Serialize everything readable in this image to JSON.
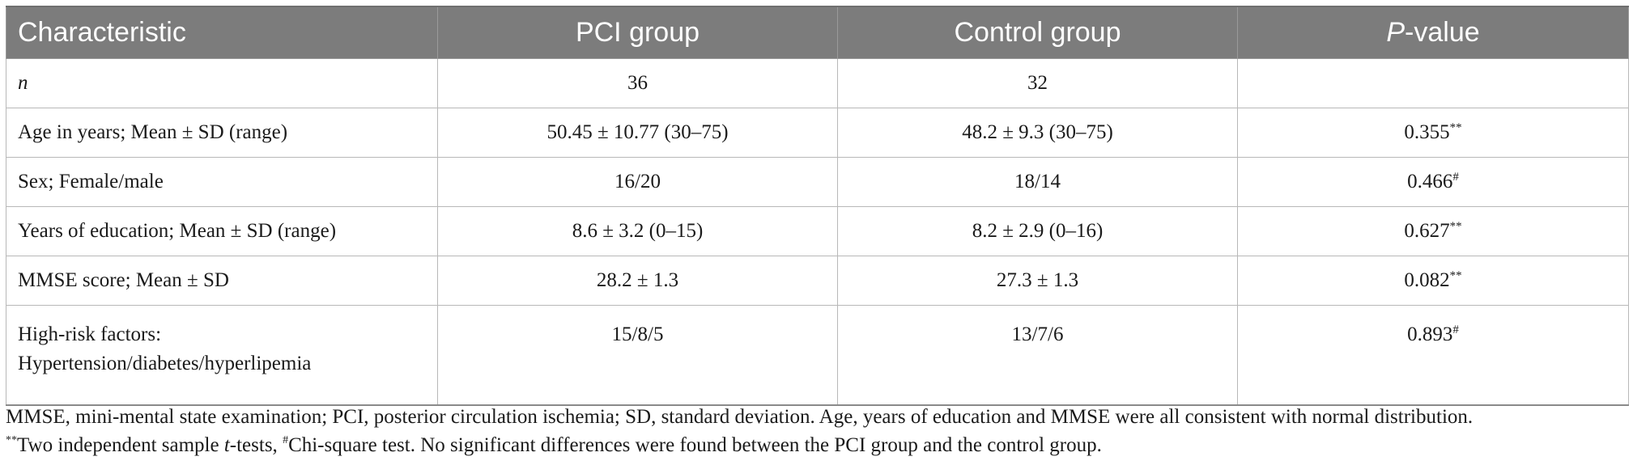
{
  "table": {
    "headers": {
      "characteristic": "Characteristic",
      "pci_group": "PCI group",
      "control_group": "Control group",
      "p_italic": "P",
      "p_rest": "-value"
    },
    "rows": [
      {
        "label": "n",
        "pci": "36",
        "control": "32",
        "p": "",
        "p_mark": ""
      },
      {
        "label": "Age in years; Mean ± SD (range)",
        "pci": "50.45 ± 10.77 (30–75)",
        "control": "48.2 ± 9.3 (30–75)",
        "p": "0.355",
        "p_mark": "**"
      },
      {
        "label": "Sex; Female/male",
        "pci": "16/20",
        "control": "18/14",
        "p": "0.466",
        "p_mark": "#"
      },
      {
        "label": "Years of education; Mean ± SD (range)",
        "pci": "8.6 ± 3.2 (0–15)",
        "control": "8.2 ± 2.9 (0–16)",
        "p": "0.627",
        "p_mark": "**"
      },
      {
        "label": "MMSE score; Mean ± SD",
        "pci": "28.2 ± 1.3",
        "control": "27.3 ± 1.3",
        "p": "0.082",
        "p_mark": "**"
      },
      {
        "label_line1": "High-risk factors:",
        "label_line2": "Hypertension/diabetes/hyperlipemia",
        "pci": "15/8/5",
        "control": "13/7/6",
        "p": "0.893",
        "p_mark": "#"
      }
    ]
  },
  "footnotes": {
    "line1": "MMSE, mini-mental state examination; PCI, posterior circulation ischemia; SD, standard deviation. Age, years of education and MMSE were all consistent with normal distribution.",
    "line2_mark1": "**",
    "line2_part1": "Two independent sample ",
    "line2_t": "t",
    "line2_part2": "-tests, ",
    "line2_mark2": "#",
    "line2_part3": "Chi-square test. No significant differences were found between the PCI group and the control group."
  }
}
